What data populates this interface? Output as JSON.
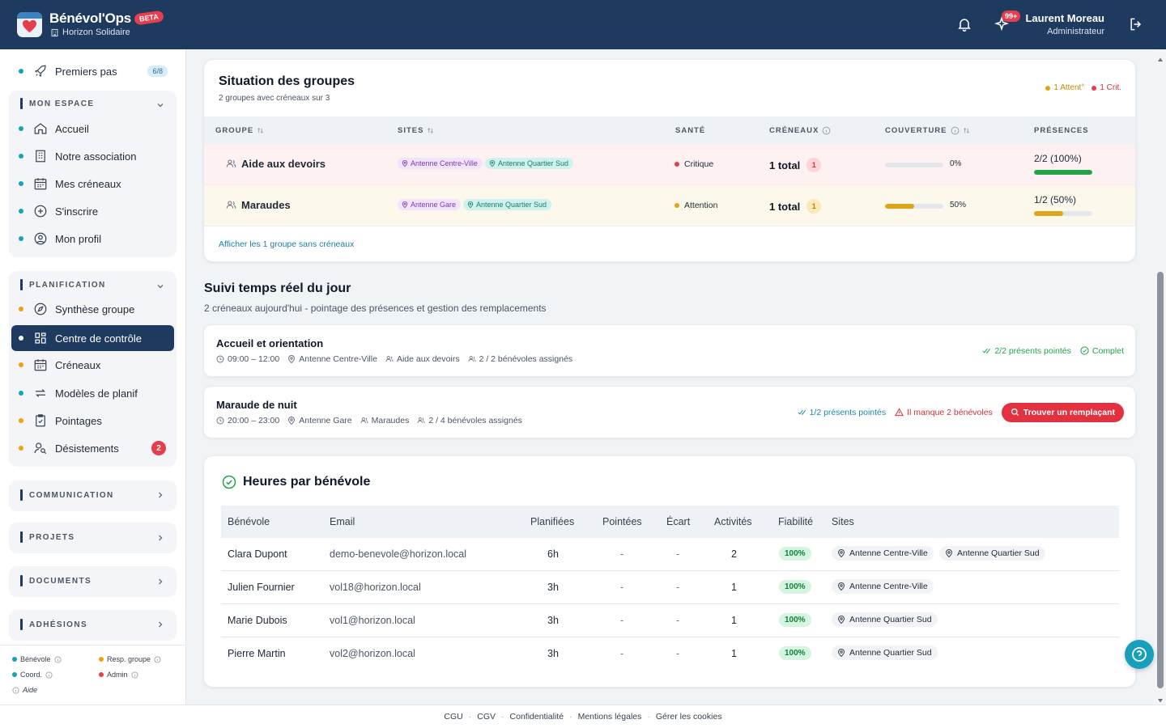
{
  "header": {
    "brand": "Bénévol'Ops",
    "beta": "BETA",
    "org": "Horizon Solidaire",
    "notif_count": "99+",
    "user_name": "Laurent Moreau",
    "user_role": "Administrateur"
  },
  "sidebar": {
    "first": {
      "label": "Premiers pas",
      "pill": "6/8"
    },
    "mon_espace": {
      "title": "MON ESPACE",
      "items": [
        {
          "label": "Accueil",
          "icon": "home-icon"
        },
        {
          "label": "Notre association",
          "icon": "building-icon"
        },
        {
          "label": "Mes créneaux",
          "icon": "calendar-icon"
        },
        {
          "label": "S'inscrire",
          "icon": "plus-circle-icon"
        },
        {
          "label": "Mon profil",
          "icon": "user-circle-icon"
        }
      ]
    },
    "planification": {
      "title": "PLANIFICATION",
      "items": [
        {
          "label": "Synthèse groupe",
          "icon": "compass-icon"
        },
        {
          "label": "Centre de contrôle",
          "icon": "grid-icon"
        },
        {
          "label": "Créneaux",
          "icon": "calendar-icon"
        },
        {
          "label": "Modèles de planif",
          "icon": "repeat-icon"
        },
        {
          "label": "Pointages",
          "icon": "clipboard-check-icon"
        },
        {
          "label": "Désistements",
          "icon": "user-search-icon",
          "badge": "2"
        }
      ]
    },
    "collapsed": [
      "COMMUNICATION",
      "PROJETS",
      "DOCUMENTS",
      "ADHÉSIONS"
    ],
    "legend": {
      "benevole": "Bénévole",
      "resp": "Resp. groupe",
      "coord": "Coord.",
      "admin": "Admin",
      "aide": "Aide"
    }
  },
  "colors": {
    "primary": "#1e3a5f",
    "benevole": "#14a3b8",
    "resp": "#f59e0b",
    "admin": "#e53e4d",
    "critical": "#e53e4d",
    "warning": "#e0a41a",
    "success": "#22a34a"
  },
  "groups": {
    "title": "Situation des groupes",
    "subtitle": "2 groupes avec créneaux sur 3",
    "status_attention": "1 Attent°",
    "status_critical": "1 Crit.",
    "columns": [
      "GROUPE",
      "SITES",
      "SANTÉ",
      "CRÉNEAUX",
      "COUVERTURE",
      "PRÉSENCES"
    ],
    "rows": [
      {
        "name": "Aide aux devoirs",
        "site_a": "Antenne Centre-Ville",
        "site_b": "Antenne Quartier Sud",
        "health": "Critique",
        "total": "1 total",
        "alert_count": "1",
        "coverage": 0,
        "coverage_label": "0%",
        "presence_label": "2/2 (100%)",
        "presence": 100
      },
      {
        "name": "Maraudes",
        "site_a": "Antenne Gare",
        "site_b": "Antenne Quartier Sud",
        "health": "Attention",
        "total": "1 total",
        "alert_count": "1",
        "coverage": 50,
        "coverage_label": "50%",
        "presence_label": "1/2 (50%)",
        "presence": 50
      }
    ],
    "link": "Afficher les 1 groupe sans créneaux"
  },
  "realtime": {
    "title": "Suivi temps réel du jour",
    "subtitle": "2 créneaux aujourd'hui - pointage des présences et gestion des remplacements",
    "slots": [
      {
        "title": "Accueil et orientation",
        "time": "09:00 – 12:00",
        "site": "Antenne Centre-Ville",
        "group": "Aide aux devoirs",
        "assigned": "2 / 2 bénévoles assignés",
        "present": "2/2 présents pointés",
        "status": "Complet"
      },
      {
        "title": "Maraude de nuit",
        "time": "20:00 – 23:00",
        "site": "Antenne Gare",
        "group": "Maraudes",
        "assigned": "2 / 4 bénévoles assignés",
        "present": "1/2 présents pointés",
        "missing": "Il manque 2 bénévoles",
        "button": "Trouver un remplaçant"
      }
    ]
  },
  "hours": {
    "title": "Heures par bénévole",
    "columns": [
      "Bénévole",
      "Email",
      "Planifiées",
      "Pointées",
      "Écart",
      "Activités",
      "Fiabilité",
      "Sites"
    ],
    "rows": [
      {
        "name": "Clara Dupont",
        "email": "demo-benevole@horizon.local",
        "planned": "6h",
        "clocked": "-",
        "gap": "-",
        "activities": "2",
        "reliability": "100%",
        "sites": [
          "Antenne Centre-Ville",
          "Antenne Quartier Sud"
        ]
      },
      {
        "name": "Julien Fournier",
        "email": "vol18@horizon.local",
        "planned": "3h",
        "clocked": "-",
        "gap": "-",
        "activities": "1",
        "reliability": "100%",
        "sites": [
          "Antenne Centre-Ville"
        ]
      },
      {
        "name": "Marie Dubois",
        "email": "vol1@horizon.local",
        "planned": "3h",
        "clocked": "-",
        "gap": "-",
        "activities": "1",
        "reliability": "100%",
        "sites": [
          "Antenne Quartier Sud"
        ]
      },
      {
        "name": "Pierre Martin",
        "email": "vol2@horizon.local",
        "planned": "3h",
        "clocked": "-",
        "gap": "-",
        "activities": "1",
        "reliability": "100%",
        "sites": [
          "Antenne Quartier Sud"
        ]
      }
    ]
  },
  "footer": [
    "CGU",
    "CGV",
    "Confidentialité",
    "Mentions légales",
    "Gérer les cookies"
  ]
}
